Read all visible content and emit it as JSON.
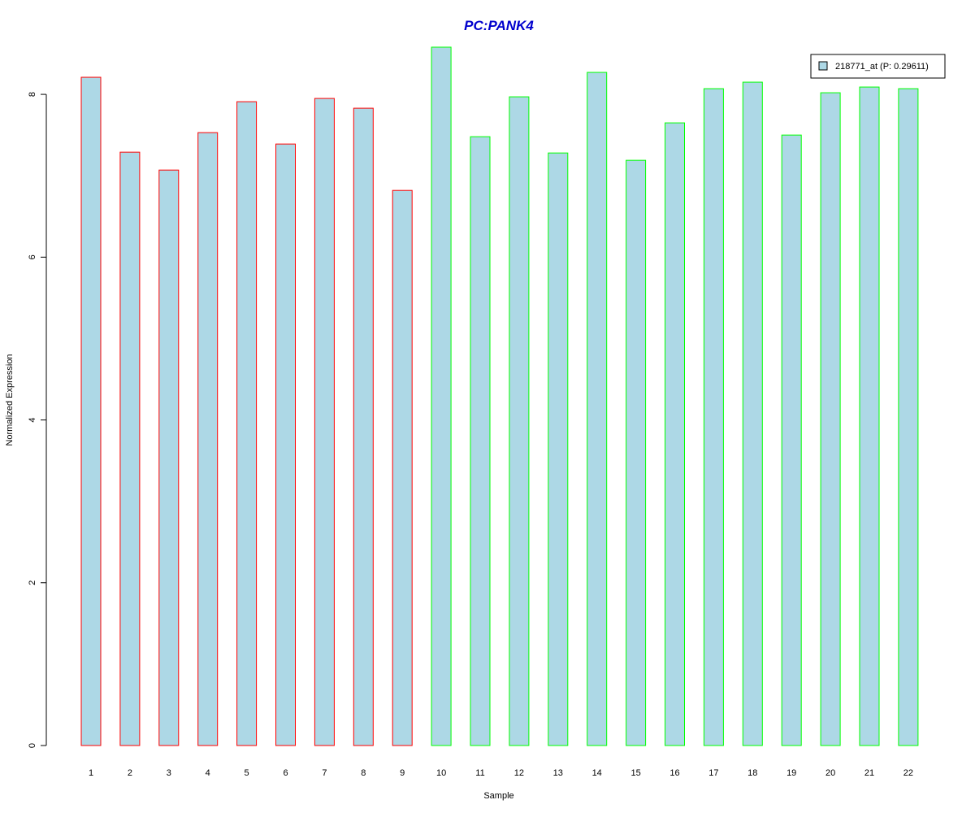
{
  "chart_data": {
    "type": "bar",
    "title": "PC:PANK4",
    "xlabel": "Sample",
    "ylabel": "Normalized Expression",
    "ylim": [
      0,
      8.6
    ],
    "yticks": [
      0,
      2,
      4,
      6,
      8
    ],
    "categories": [
      "1",
      "2",
      "3",
      "4",
      "5",
      "6",
      "7",
      "8",
      "9",
      "10",
      "11",
      "12",
      "13",
      "14",
      "15",
      "16",
      "17",
      "18",
      "19",
      "20",
      "21",
      "22"
    ],
    "series": [
      {
        "name": "218771_at (P: 0.29611)",
        "values": [
          8.21,
          7.29,
          7.07,
          7.53,
          7.91,
          7.39,
          7.95,
          7.83,
          6.82,
          8.58,
          7.48,
          7.97,
          7.28,
          8.27,
          7.19,
          7.65,
          8.07,
          8.15,
          7.5,
          8.02,
          8.09,
          8.07
        ]
      }
    ],
    "bar_fill": "#add8e6",
    "group_colors": [
      "#ff0000",
      "#ff0000",
      "#ff0000",
      "#ff0000",
      "#ff0000",
      "#ff0000",
      "#ff0000",
      "#ff0000",
      "#ff0000",
      "#00ff00",
      "#00ff00",
      "#00ff00",
      "#00ff00",
      "#00ff00",
      "#00ff00",
      "#00ff00",
      "#00ff00",
      "#00ff00",
      "#00ff00",
      "#00ff00",
      "#00ff00",
      "#00ff00"
    ],
    "title_color": "#0000cd",
    "legend_position": "top-right",
    "grid": false
  }
}
